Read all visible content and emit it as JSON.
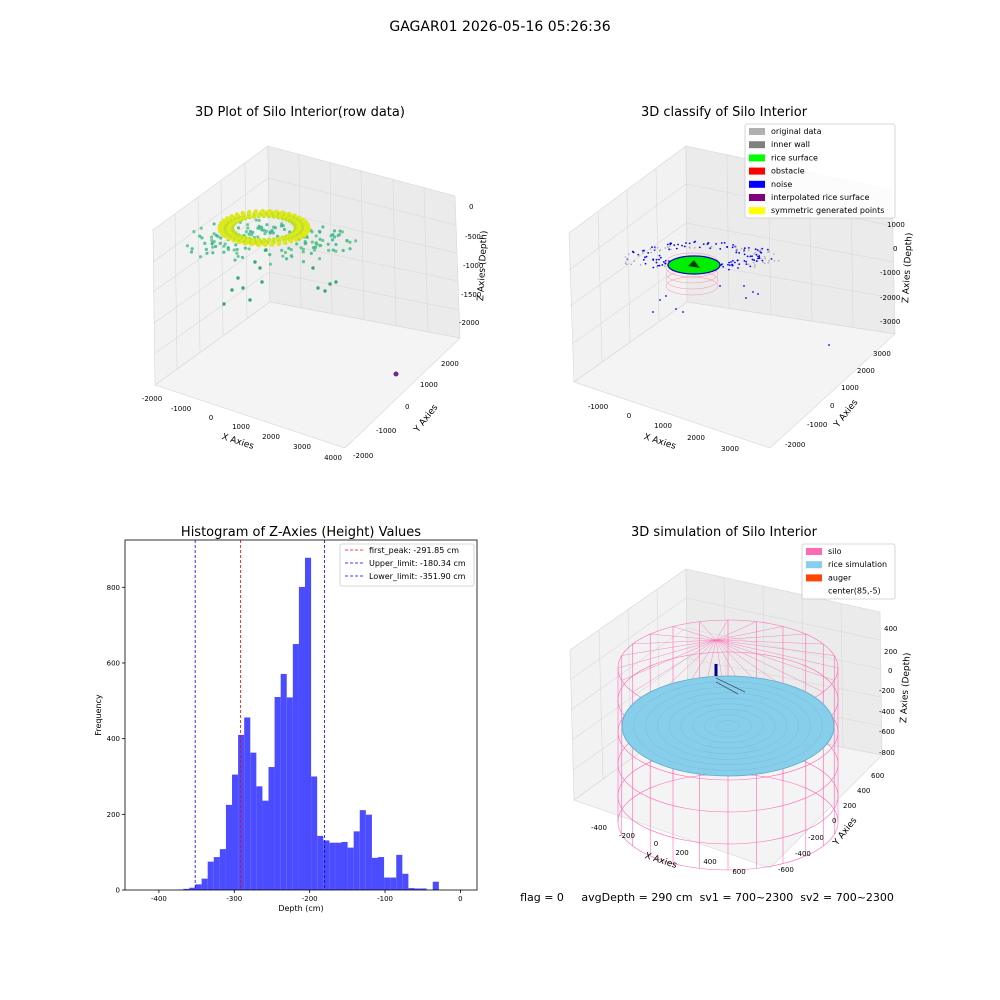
{
  "figure": {
    "suptitle": "GAGAR01 2026-05-16 05:26:36",
    "footer": "flag = 0     avgDepth = 290 cm  sv1 = 700~2300  sv2 = 700~2300"
  },
  "panels": {
    "raw": {
      "title": "3D Plot of Silo Interior(row data)",
      "xlabel": "X Axies",
      "ylabel": "Y Axies",
      "zlabel": "Z Axies (Depth)",
      "xticks": [
        "-2000",
        "-1000",
        "0",
        "1000",
        "2000",
        "3000",
        "4000"
      ],
      "yticks": [
        "-2000",
        "-1000",
        "0",
        "1000",
        "2000"
      ],
      "zticks": [
        "0",
        "-500",
        "-1000",
        "-1500",
        "-2000"
      ]
    },
    "classify": {
      "title": "3D classify of Silo Interior",
      "xlabel": "X Axies",
      "ylabel": "Y Axies",
      "zlabel": "Z Axies (Depth)",
      "xticks": [
        "-1000",
        "0",
        "1000",
        "2000",
        "3000"
      ],
      "yticks": [
        "-2000",
        "-1000",
        "0",
        "1000",
        "2000",
        "3000"
      ],
      "zticks": [
        "1000",
        "0",
        "-1000",
        "-2000",
        "-3000"
      ],
      "legend": [
        {
          "label": "original data",
          "color": "#b0b0b0"
        },
        {
          "label": "inner wall",
          "color": "#808080"
        },
        {
          "label": "rice surface",
          "color": "#00ff00"
        },
        {
          "label": "obstacle",
          "color": "#ff0000"
        },
        {
          "label": "noise",
          "color": "#0000ff"
        },
        {
          "label": "interpolated rice surface",
          "color": "#800080"
        },
        {
          "label": "symmetric generated points",
          "color": "#ffff00"
        }
      ]
    },
    "simulation": {
      "title": "3D simulation of Silo Interior",
      "xlabel": "X Axies",
      "ylabel": "Y Axies",
      "zlabel": "Z Axies (Depth)",
      "xticks": [
        "-400",
        "-200",
        "0",
        "200",
        "400",
        "600"
      ],
      "yticks": [
        "-600",
        "-400",
        "-200",
        "0",
        "200",
        "400",
        "600"
      ],
      "zticks": [
        "400",
        "200",
        "0",
        "-200",
        "-400",
        "-600",
        "-800"
      ],
      "legend": [
        {
          "label": "silo",
          "color": "#ff69b4"
        },
        {
          "label": "rice simulation",
          "color": "#87ceeb"
        },
        {
          "label": "auger",
          "color": "#ff4500"
        },
        {
          "label": "center(85,-5)",
          "color": "#ffffff"
        }
      ]
    }
  },
  "chart_data": {
    "type": "bar",
    "title": "Histogram of Z-Axies (Height) Values",
    "xlabel": "Depth (cm)",
    "ylabel": "Frequency",
    "xlim": [
      -445,
      22
    ],
    "ylim": [
      0,
      925
    ],
    "xticks": [
      -400,
      -300,
      -200,
      -100,
      0
    ],
    "yticks": [
      0,
      200,
      400,
      600,
      800
    ],
    "bar_color": "#4b4bff",
    "bin_start": -416,
    "bin_width": 8.07,
    "values": [
      0,
      0,
      0,
      0,
      0,
      1,
      3,
      6,
      15,
      30,
      75,
      87,
      108,
      225,
      305,
      410,
      456,
      363,
      274,
      236,
      325,
      510,
      571,
      509,
      650,
      801,
      878,
      300,
      143,
      131,
      125,
      125,
      127,
      112,
      155,
      211,
      199,
      85,
      87,
      33,
      33,
      93,
      43,
      5,
      4,
      4,
      0,
      22
    ],
    "lines": [
      {
        "label": "first_peak: -291.85 cm",
        "x": -291.85,
        "color": "#ff0000",
        "style": "dashed"
      },
      {
        "label": "Upper_limit: -180.34 cm",
        "x": -180.34,
        "color": "#0000ff",
        "style": "dashed"
      },
      {
        "label": "Lower_limit: -351.90 cm",
        "x": -351.9,
        "color": "#0000ff",
        "style": "dashed"
      }
    ]
  }
}
